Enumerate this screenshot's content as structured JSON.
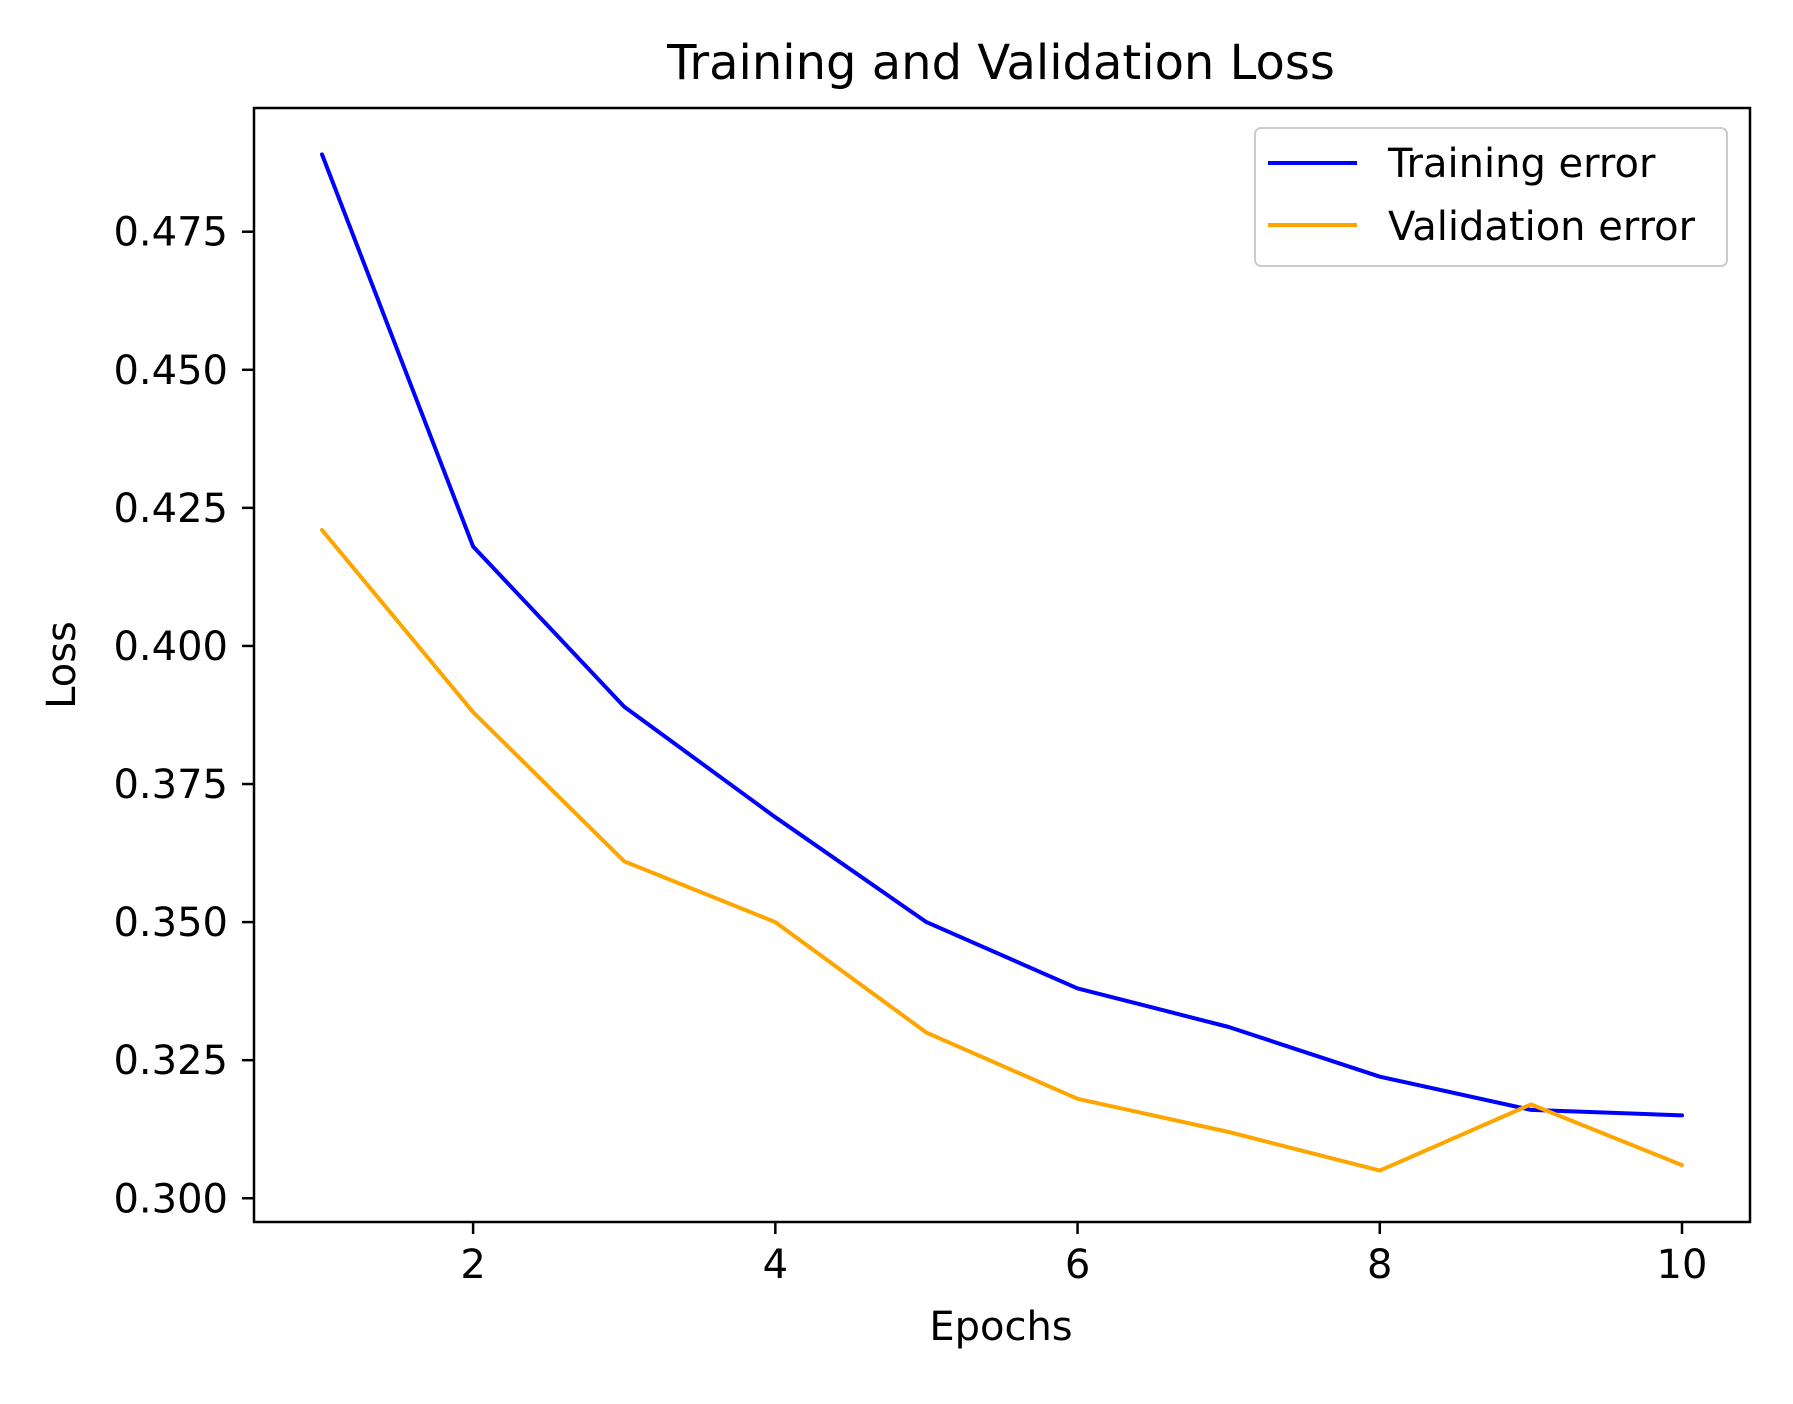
{
  "chart_data": {
    "type": "line",
    "title": "Training and Validation Loss",
    "xlabel": "Epochs",
    "ylabel": "Loss",
    "xlim": [
      0.55,
      10.45
    ],
    "ylim": [
      0.2957,
      0.4974
    ],
    "x_ticks": [
      2,
      4,
      6,
      8,
      10
    ],
    "y_ticks": [
      0.3,
      0.325,
      0.35,
      0.375,
      0.4,
      0.425,
      0.45,
      0.475
    ],
    "x_tick_labels": [
      "2",
      "4",
      "6",
      "8",
      "10"
    ],
    "y_tick_labels": [
      "0.300",
      "0.325",
      "0.350",
      "0.375",
      "0.400",
      "0.425",
      "0.450",
      "0.475"
    ],
    "grid": false,
    "legend_position": "top-right",
    "x": [
      1,
      2,
      3,
      4,
      5,
      6,
      7,
      8,
      9,
      10
    ],
    "series": [
      {
        "name": "Training error",
        "color": "#0000ff",
        "values": [
          0.489,
          0.418,
          0.389,
          0.369,
          0.35,
          0.338,
          0.331,
          0.322,
          0.316,
          0.315
        ]
      },
      {
        "name": "Validation error",
        "color": "#ffa500",
        "values": [
          0.421,
          0.388,
          0.361,
          0.35,
          0.33,
          0.318,
          0.312,
          0.305,
          0.317,
          0.306
        ]
      }
    ]
  }
}
